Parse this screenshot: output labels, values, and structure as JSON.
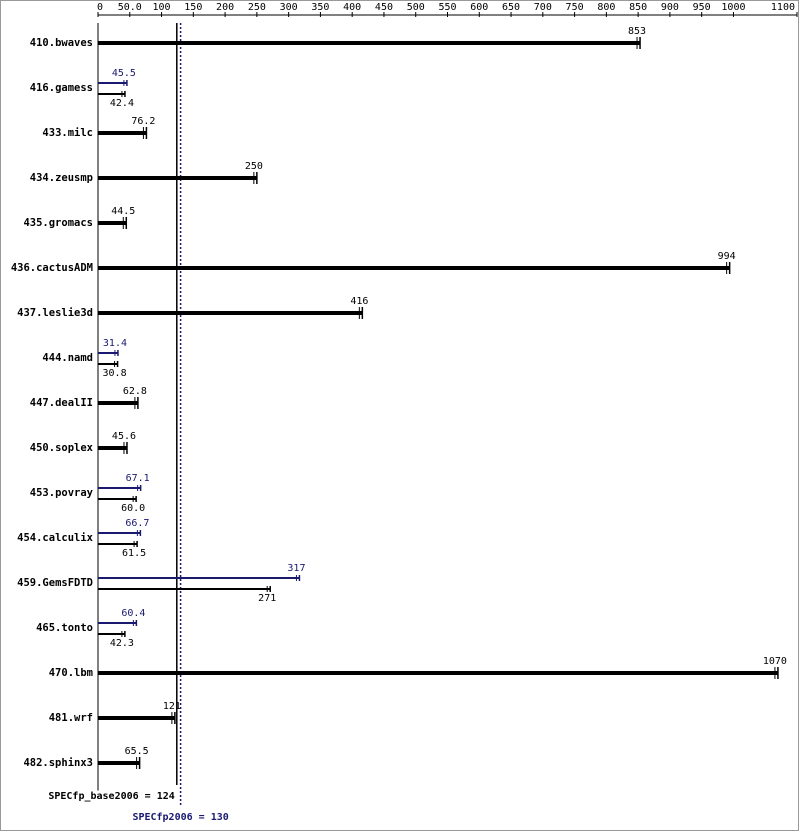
{
  "chart_data": {
    "type": "hbar",
    "categories": [
      "410.bwaves",
      "416.gamess",
      "433.milc",
      "434.zeusmp",
      "435.gromacs",
      "436.cactusADM",
      "437.leslie3d",
      "444.namd",
      "447.dealII",
      "450.soplex",
      "453.povray",
      "454.calculix",
      "459.GemsFDTD",
      "465.tonto",
      "470.lbm",
      "481.wrf",
      "482.sphinx3"
    ],
    "series": [
      {
        "name": "base",
        "color": "#000000",
        "values": [
          853,
          42.4,
          76.2,
          250,
          44.5,
          994,
          416,
          30.8,
          62.8,
          45.6,
          60.0,
          61.5,
          271,
          42.3,
          1070,
          121,
          65.5
        ],
        "value_labels": [
          "853",
          "42.4",
          "76.2",
          "250",
          "44.5",
          "994",
          "416",
          "30.8",
          "62.8",
          "45.6",
          "60.0",
          "61.5",
          "271",
          "42.3",
          "1070",
          "121",
          "65.5"
        ]
      },
      {
        "name": "peak",
        "color": "#191970",
        "values": [
          null,
          45.5,
          null,
          null,
          null,
          null,
          null,
          31.4,
          null,
          null,
          67.1,
          66.7,
          317,
          60.4,
          null,
          null,
          null
        ]
      }
    ],
    "xlim": [
      0,
      1100
    ],
    "xticks": [
      0,
      {
        "value": 50,
        "label": "50.0"
      },
      100,
      150,
      200,
      250,
      300,
      350,
      400,
      450,
      500,
      550,
      600,
      650,
      700,
      750,
      800,
      850,
      900,
      950,
      1000,
      1100
    ],
    "reference_lines": [
      {
        "text": "SPECfp_base2006 = 124",
        "value": 124,
        "color": "#000000",
        "style": "solid"
      },
      {
        "text": "SPECfp2006 = 130",
        "value": 130,
        "color": "#191970",
        "style": "dotted"
      }
    ]
  }
}
